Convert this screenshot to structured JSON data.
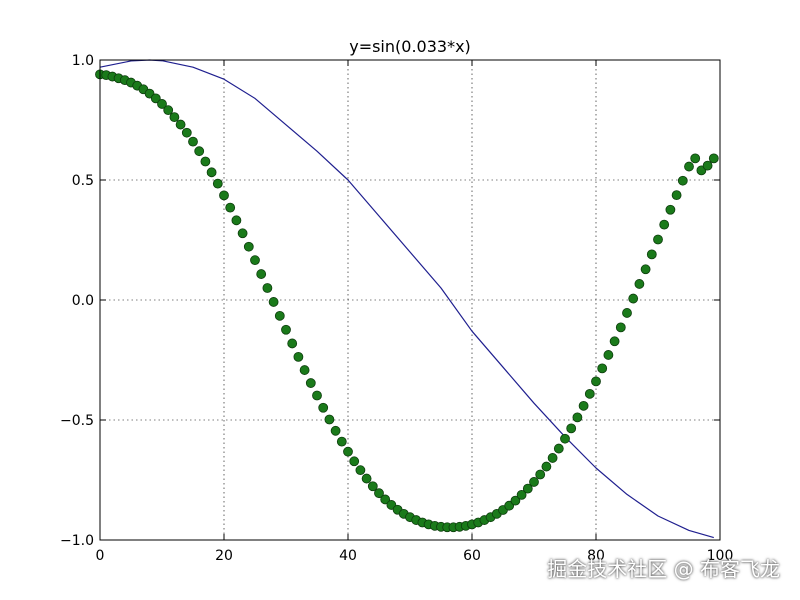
{
  "chart_data": {
    "type": "line",
    "title": "y=sin(0.033*x)",
    "xlabel": "",
    "ylabel": "",
    "xlim": [
      0,
      100
    ],
    "ylim": [
      -1.0,
      1.0
    ],
    "grid": true,
    "x_ticks": [
      0,
      20,
      40,
      60,
      80,
      100
    ],
    "x_tick_labels": [
      "0",
      "20",
      "40",
      "60",
      "80",
      "100"
    ],
    "y_ticks": [
      1.0,
      0.5,
      0.0,
      -0.5,
      -1.0
    ],
    "y_tick_labels": [
      "1.0",
      "0.5",
      "0.0",
      "−0.5",
      "−1.0"
    ],
    "series": [
      {
        "style": "line",
        "color": "#1f1f8f",
        "x": [
          0,
          5,
          8,
          10,
          15,
          20,
          25,
          30,
          35,
          40,
          45,
          50,
          55,
          60,
          65,
          70,
          75,
          80,
          85,
          90,
          95,
          99
        ],
        "y": [
          0.97,
          0.996,
          1.0,
          0.997,
          0.97,
          0.92,
          0.84,
          0.73,
          0.62,
          0.5,
          0.35,
          0.2,
          0.05,
          -0.13,
          -0.28,
          -0.43,
          -0.57,
          -0.7,
          -0.81,
          -0.9,
          -0.96,
          -0.99
        ]
      },
      {
        "style": "markers",
        "color": "#1a7a1a",
        "x": [
          0,
          1,
          2,
          3,
          4,
          5,
          6,
          7,
          8,
          9,
          10,
          11,
          12,
          13,
          14,
          15,
          16,
          17,
          18,
          19,
          20,
          21,
          22,
          23,
          24,
          25,
          26,
          27,
          28,
          29,
          30,
          31,
          32,
          33,
          34,
          35,
          36,
          37,
          38,
          39,
          40,
          41,
          42,
          43,
          44,
          45,
          46,
          47,
          48,
          49,
          50,
          51,
          52,
          53,
          54,
          55,
          56,
          57,
          58,
          59,
          60,
          61,
          62,
          63,
          64,
          65,
          66,
          67,
          68,
          69,
          70,
          71,
          72,
          73,
          74,
          75,
          76,
          77,
          78,
          79,
          80,
          81,
          82,
          83,
          84,
          85,
          86,
          87,
          88,
          89,
          90,
          91,
          92,
          93,
          94,
          95,
          96,
          97,
          98,
          99
        ],
        "y": [
          0.94,
          0.937,
          0.931,
          0.924,
          0.916,
          0.906,
          0.893,
          0.878,
          0.86,
          0.84,
          0.817,
          0.791,
          0.762,
          0.731,
          0.697,
          0.66,
          0.62,
          0.577,
          0.532,
          0.485,
          0.436,
          0.385,
          0.332,
          0.278,
          0.222,
          0.166,
          0.108,
          0.05,
          -0.008,
          -0.066,
          -0.124,
          -0.181,
          -0.237,
          -0.292,
          -0.346,
          -0.398,
          -0.449,
          -0.498,
          -0.545,
          -0.59,
          -0.632,
          -0.672,
          -0.709,
          -0.744,
          -0.776,
          -0.805,
          -0.831,
          -0.854,
          -0.874,
          -0.891,
          -0.905,
          -0.917,
          -0.927,
          -0.935,
          -0.941,
          -0.945,
          -0.947,
          -0.947,
          -0.945,
          -0.941,
          -0.935,
          -0.927,
          -0.917,
          -0.905,
          -0.891,
          -0.875,
          -0.857,
          -0.836,
          -0.812,
          -0.786,
          -0.758,
          -0.727,
          -0.694,
          -0.658,
          -0.619,
          -0.578,
          -0.535,
          -0.489,
          -0.441,
          -0.391,
          -0.339,
          -0.285,
          -0.229,
          -0.172,
          -0.114,
          -0.054,
          0.006,
          0.067,
          0.128,
          0.19,
          0.252,
          0.314,
          0.376,
          0.437,
          0.497,
          0.556,
          0.59,
          0.54,
          0.56,
          0.59
        ]
      }
    ]
  },
  "watermark": "掘金技术社区 @ 布客飞龙"
}
